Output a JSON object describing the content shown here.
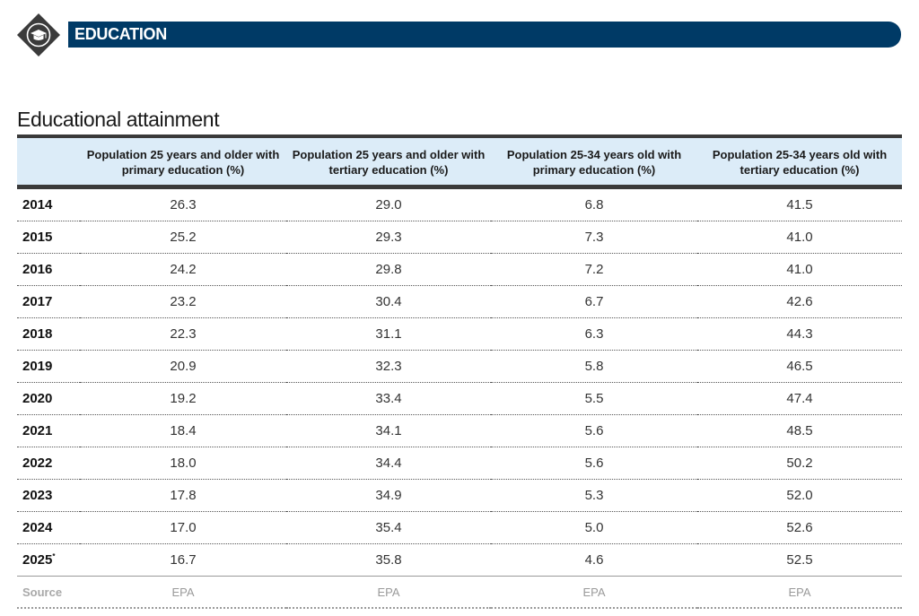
{
  "header": {
    "title": "EDUCATION",
    "badge_icon": "graduation-cap-icon",
    "colors": {
      "banner": "#003a66",
      "badge": "#3b3b3b",
      "table_header_bg": "#dcecf8"
    }
  },
  "section": {
    "title": "Educational attainment"
  },
  "table": {
    "columns": [
      "",
      "Population 25 years and older with primary education (%)",
      "Population 25 years and older with tertiary education (%)",
      "Population 25-34 years old with primary education (%)",
      "Population 25-34 years old with tertiary education (%)"
    ],
    "rows": [
      {
        "year": "2014",
        "footnote": "",
        "values": [
          "26.3",
          "29.0",
          "6.8",
          "41.5"
        ]
      },
      {
        "year": "2015",
        "footnote": "",
        "values": [
          "25.2",
          "29.3",
          "7.3",
          "41.0"
        ]
      },
      {
        "year": "2016",
        "footnote": "",
        "values": [
          "24.2",
          "29.8",
          "7.2",
          "41.0"
        ]
      },
      {
        "year": "2017",
        "footnote": "",
        "values": [
          "23.2",
          "30.4",
          "6.7",
          "42.6"
        ]
      },
      {
        "year": "2018",
        "footnote": "",
        "values": [
          "22.3",
          "31.1",
          "6.3",
          "44.3"
        ]
      },
      {
        "year": "2019",
        "footnote": "",
        "values": [
          "20.9",
          "32.3",
          "5.8",
          "46.5"
        ]
      },
      {
        "year": "2020",
        "footnote": "",
        "values": [
          "19.2",
          "33.4",
          "5.5",
          "47.4"
        ]
      },
      {
        "year": "2021",
        "footnote": "",
        "values": [
          "18.4",
          "34.1",
          "5.6",
          "48.5"
        ]
      },
      {
        "year": "2022",
        "footnote": "",
        "values": [
          "18.0",
          "34.4",
          "5.6",
          "50.2"
        ]
      },
      {
        "year": "2023",
        "footnote": "",
        "values": [
          "17.8",
          "34.9",
          "5.3",
          "52.0"
        ]
      },
      {
        "year": "2024",
        "footnote": "",
        "values": [
          "17.0",
          "35.4",
          "5.0",
          "52.6"
        ]
      },
      {
        "year": "2025",
        "footnote": "*",
        "values": [
          "16.7",
          "35.8",
          "4.6",
          "52.5"
        ]
      }
    ],
    "source": {
      "label": "Source",
      "values": [
        "EPA",
        "EPA",
        "EPA",
        "EPA"
      ]
    }
  }
}
